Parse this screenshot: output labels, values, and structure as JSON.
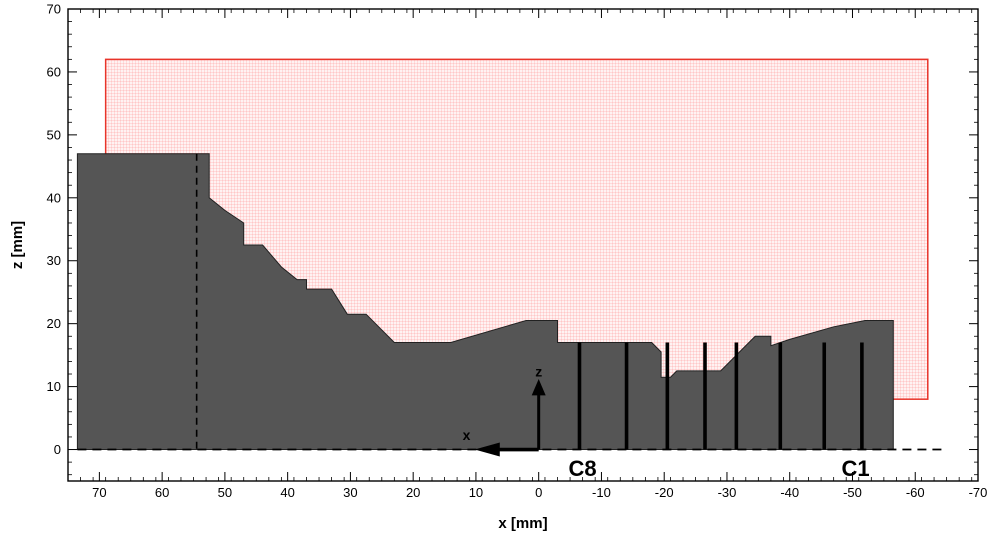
{
  "chart_data": {
    "type": "diagram-plot",
    "xlabel": "x [mm]",
    "ylabel": "z [mm]",
    "xlim": [
      75,
      -70
    ],
    "ylim": [
      -5,
      70
    ],
    "x_ticks": [
      70,
      60,
      50,
      40,
      30,
      20,
      10,
      0,
      -10,
      -20,
      -30,
      -40,
      -50,
      -60,
      -70
    ],
    "y_ticks": [
      0,
      10,
      20,
      30,
      40,
      50,
      60,
      70
    ],
    "grid_region": {
      "x_from": 69,
      "x_to": -62,
      "z_from": 8,
      "z_to": 62
    },
    "profile": [
      [
        73.5,
        0
      ],
      [
        73.5,
        47
      ],
      [
        52.5,
        47
      ],
      [
        52.5,
        40
      ],
      [
        50,
        38
      ],
      [
        47,
        36
      ],
      [
        47,
        32.5
      ],
      [
        44,
        32.5
      ],
      [
        41,
        29
      ],
      [
        38.5,
        27
      ],
      [
        37,
        27
      ],
      [
        37,
        25.5
      ],
      [
        33,
        25.5
      ],
      [
        30.5,
        21.5
      ],
      [
        27.5,
        21.5
      ],
      [
        23,
        17
      ],
      [
        14,
        17
      ],
      [
        2,
        20.5
      ],
      [
        -3,
        20.5
      ],
      [
        -3,
        17
      ],
      [
        -18,
        17
      ],
      [
        -19.5,
        15.5
      ],
      [
        -19.5,
        11.5
      ],
      [
        -21,
        11.5
      ],
      [
        -22,
        12.5
      ],
      [
        -29,
        12.5
      ],
      [
        -32,
        15.5
      ],
      [
        -34.5,
        18
      ],
      [
        -37,
        18
      ],
      [
        -37,
        16.5
      ],
      [
        -40,
        17.5
      ],
      [
        -47,
        19.5
      ],
      [
        -52,
        20.5
      ],
      [
        -56.5,
        20.5
      ],
      [
        -56.5,
        0
      ]
    ],
    "dashed_vertical_x": 54.5,
    "axis_line_z": 0,
    "channels": [
      -6.5,
      -14,
      -20.5,
      -26.5,
      -31.5,
      -38.5,
      -45.5,
      -51.5
    ],
    "origin_arrows": {
      "z_label": "z",
      "x_label": "x"
    },
    "annotations": [
      {
        "text": "C8",
        "x": -7,
        "y": -2.8
      },
      {
        "text": "C1",
        "x": -50.5,
        "y": -2.8
      }
    ],
    "colors": {
      "body": "#555555",
      "grid": "#ff8080",
      "grid_border": "#e8342a",
      "grid_fill": "#fff2f2"
    },
    "grid": false,
    "legend": "none"
  }
}
